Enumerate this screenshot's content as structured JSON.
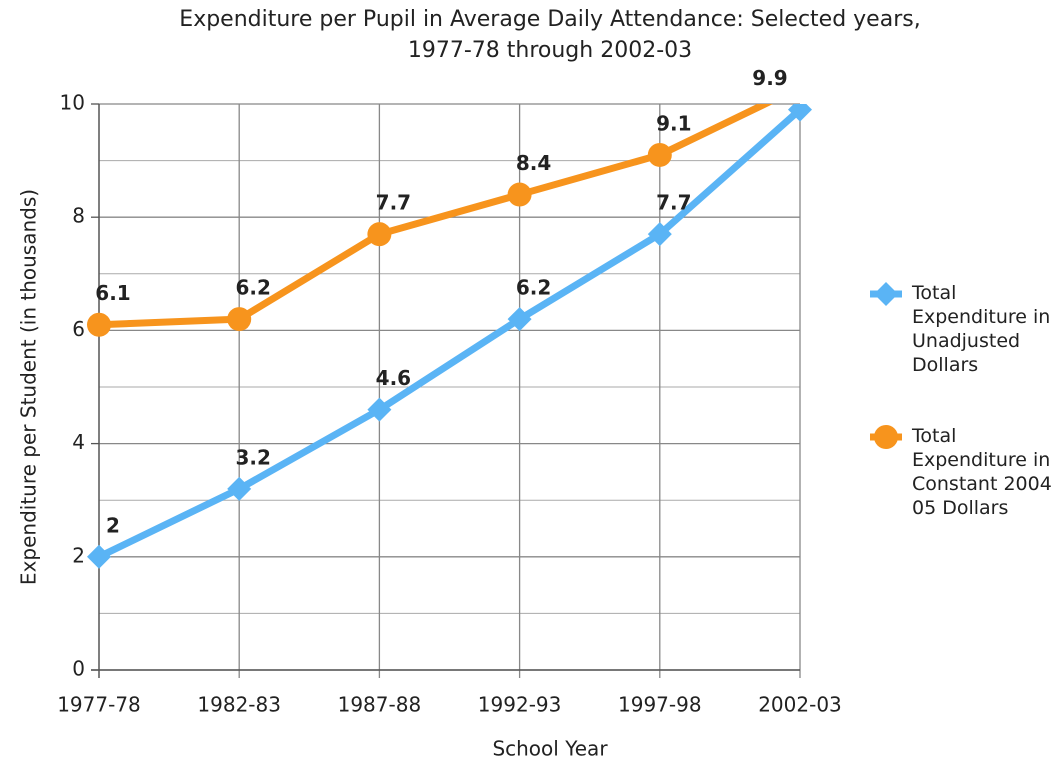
{
  "chart_data": {
    "type": "line",
    "title": "Expenditure per Pupil in Average Daily Attendance: Selected years, 1977-78 through 2002-03",
    "x_label": "School Year",
    "y_label": "Expenditure per Student (in thousands)",
    "categories": [
      "1977-78",
      "1982-83",
      "1987-88",
      "1992-93",
      "1997-98",
      "2002-03"
    ],
    "series": [
      {
        "name": "Total Expenditure in Unadjusted Dollars",
        "color": "#5ab4f5",
        "marker": "diamond",
        "values": [
          2,
          3.2,
          4.6,
          6.2,
          7.7,
          9.9
        ]
      },
      {
        "name": "Total Expenditure in Constant 2004-05 Dollars",
        "color": "#f7941d",
        "marker": "circle",
        "values": [
          6.1,
          6.2,
          7.7,
          8.4,
          9.1,
          10.3
        ]
      }
    ],
    "ylim": [
      0,
      10
    ],
    "yticks": [
      0,
      2,
      4,
      6,
      8,
      10
    ],
    "y_minor_ticks": [
      1,
      3,
      5,
      7,
      9
    ],
    "grid": true,
    "data_labels": true,
    "legend": "right"
  }
}
